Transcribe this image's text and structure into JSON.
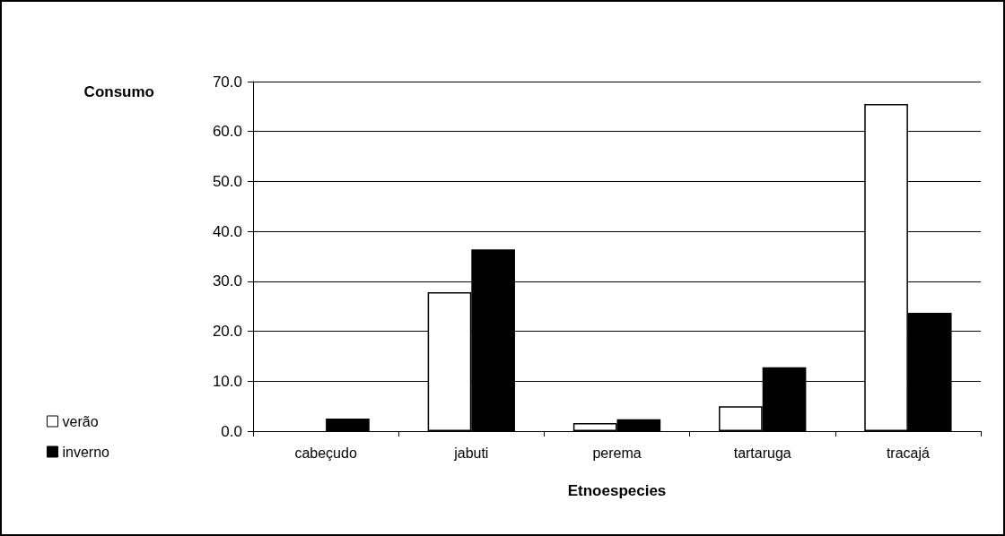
{
  "chart_data": {
    "type": "bar",
    "xlabel": "Etnoespecies",
    "ylabel": "Consumo",
    "categories": [
      "cabeçudo",
      "jabuti",
      "perema",
      "tartaruga",
      "tracajá"
    ],
    "series": [
      {
        "name": "verão",
        "color": "#ffffff",
        "values": [
          0,
          27.8,
          1.6,
          5.0,
          65.5
        ]
      },
      {
        "name": "inverno",
        "color": "#000000",
        "values": [
          2.5,
          36.4,
          2.4,
          12.8,
          23.7
        ]
      }
    ],
    "ylim": [
      0,
      70
    ],
    "yticks": [
      {
        "value": 0,
        "label": "0.0"
      },
      {
        "value": 10,
        "label": "10.0"
      },
      {
        "value": 20,
        "label": "20.0"
      },
      {
        "value": 30,
        "label": "30.0"
      },
      {
        "value": 40,
        "label": "40.0"
      },
      {
        "value": 50,
        "label": "50.0"
      },
      {
        "value": 60,
        "label": "60.0"
      },
      {
        "value": 70,
        "label": "70.0"
      }
    ],
    "grid": "y",
    "legend": "bottom left"
  }
}
